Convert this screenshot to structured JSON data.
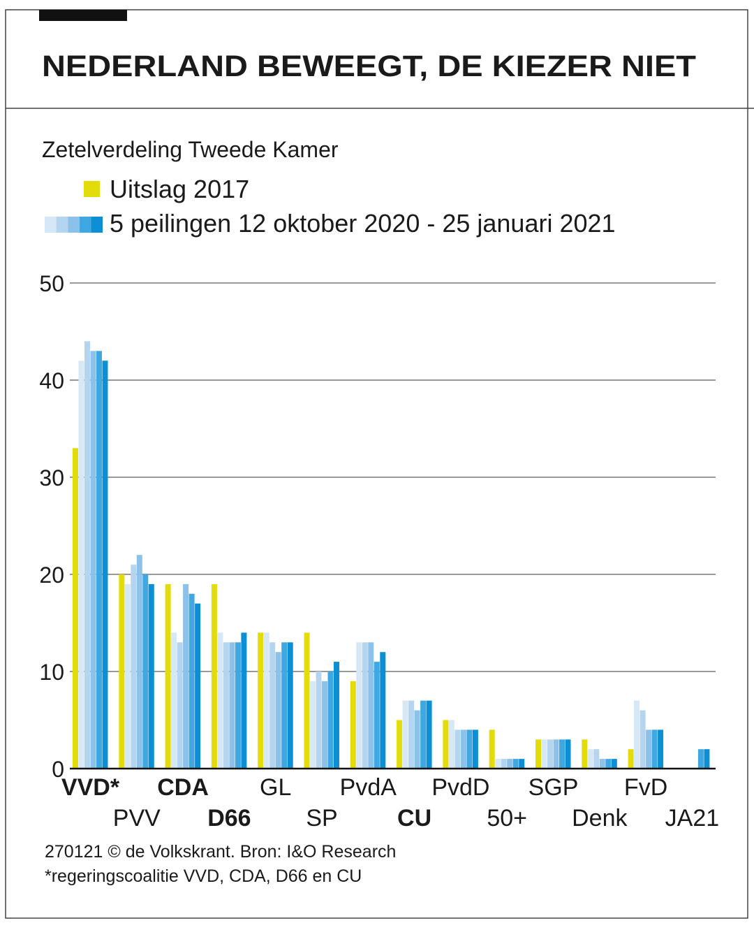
{
  "chart_data": {
    "type": "bar",
    "title": "NEDERLAND BEWEEGT, DE KIEZER NIET",
    "subtitle": "Zetelverdeling Tweede Kamer",
    "poll_legend": "5 peilingen 12 oktober 2020 - 25 januari 2021",
    "categories": [
      "VVD*",
      "PVV",
      "CDA",
      "D66",
      "GL",
      "SP",
      "PvdA",
      "CU",
      "PvdD",
      "50+",
      "SGP",
      "Denk",
      "FvD",
      "JA21"
    ],
    "bold": [
      true,
      false,
      true,
      true,
      false,
      false,
      false,
      true,
      false,
      false,
      false,
      false,
      false,
      false
    ],
    "series": [
      {
        "name": "Uitslag 2017",
        "color": "#e3dc0a",
        "values": [
          33,
          20,
          19,
          19,
          14,
          14,
          9,
          5,
          5,
          4,
          3,
          3,
          2,
          null
        ]
      },
      {
        "color": "#d6e7f5",
        "values": [
          42,
          19,
          14,
          14,
          14,
          9,
          13,
          7,
          5,
          1,
          3,
          2,
          7,
          null
        ]
      },
      {
        "color": "#b4d5ef",
        "values": [
          44,
          21,
          13,
          13,
          13,
          10,
          13,
          7,
          4,
          1,
          3,
          2,
          6,
          null
        ]
      },
      {
        "color": "#8cc2e9",
        "values": [
          43,
          22,
          19,
          13,
          12,
          9,
          13,
          6,
          4,
          1,
          3,
          1,
          4,
          null
        ]
      },
      {
        "color": "#3fa7e1",
        "values": [
          43,
          20,
          18,
          13,
          13,
          10,
          11,
          7,
          4,
          1,
          3,
          1,
          4,
          2
        ]
      },
      {
        "color": "#0c8fd5",
        "values": [
          42,
          19,
          17,
          14,
          13,
          11,
          12,
          7,
          4,
          1,
          3,
          1,
          4,
          2
        ]
      }
    ],
    "ylim": [
      0,
      50
    ],
    "yticks": [
      0,
      10,
      20,
      30,
      40,
      50
    ],
    "grid": true,
    "notes": [
      "270121 © de Volkskrant. Bron: I&O Research",
      "*regeringscoalitie VVD, CDA, D66 en CU"
    ]
  }
}
